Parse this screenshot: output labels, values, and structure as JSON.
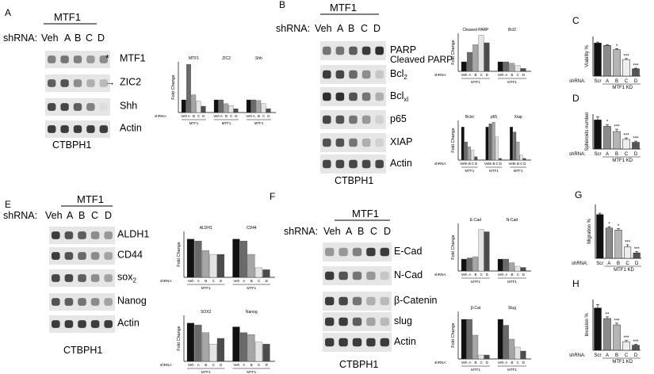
{
  "panels": {
    "A": {
      "letter": "A",
      "mtf1": "MTF1",
      "shrna": "shRNA:",
      "lanes": [
        "Veh",
        "A",
        "B",
        "C",
        "D"
      ],
      "cell_line": "CTBPH1",
      "bands": [
        {
          "label": "MTF1",
          "marker": "*",
          "intensity": [
            0.55,
            0.6,
            0.55,
            0.45,
            0.5
          ]
        },
        {
          "label": "ZIC2",
          "marker": "→",
          "intensity": [
            0.7,
            0.75,
            0.5,
            0.35,
            0.3
          ]
        },
        {
          "label": "Shh",
          "marker": "",
          "intensity": [
            0.8,
            0.8,
            0.7,
            0.55,
            0.15
          ]
        },
        {
          "label": "Actin",
          "marker": "",
          "intensity": [
            0.85,
            0.85,
            0.85,
            0.85,
            0.85
          ]
        }
      ]
    },
    "B": {
      "letter": "B",
      "mtf1": "MTF1",
      "shrna": "shRNA:",
      "lanes": [
        "Veh",
        "A",
        "B",
        "C",
        "D"
      ],
      "cell_line": "CTBPH1",
      "bands": [
        {
          "label": "PARP",
          "label2": "Cleaved PARP",
          "intensity": [
            0.6,
            0.6,
            0.7,
            0.85,
            0.9
          ]
        },
        {
          "label": "Bcl",
          "sub": "2",
          "intensity": [
            0.85,
            0.8,
            0.65,
            0.5,
            0.25
          ]
        },
        {
          "label": "Bcl",
          "sub": "xl",
          "intensity": [
            0.9,
            0.9,
            0.75,
            0.6,
            0.35
          ]
        },
        {
          "label": "p65",
          "intensity": [
            0.8,
            0.75,
            0.6,
            0.45,
            0.2
          ]
        },
        {
          "label": "XIAP",
          "intensity": [
            0.75,
            0.75,
            0.6,
            0.35,
            0.2
          ]
        },
        {
          "label": "Actin",
          "intensity": [
            0.8,
            0.8,
            0.8,
            0.8,
            0.8
          ]
        }
      ]
    },
    "C": {
      "letter": "C",
      "ylabel": "Viability %",
      "xlabel": "MTF1 KD"
    },
    "D": {
      "letter": "D",
      "ylabel": "Spheroids number",
      "xlabel": "MTF1 KD"
    },
    "E": {
      "letter": "E",
      "mtf1": "MTF1",
      "shrna": "shRNA:",
      "lanes": [
        "Veh",
        "A",
        "B",
        "C",
        "D"
      ],
      "cell_line": "CTBPH1",
      "bands": [
        {
          "label": "ALDH1",
          "intensity": [
            0.85,
            0.75,
            0.7,
            0.5,
            0.45
          ]
        },
        {
          "label": "CD44",
          "intensity": [
            0.85,
            0.75,
            0.65,
            0.5,
            0.4
          ]
        },
        {
          "label": "sox",
          "sub": "2",
          "intensity": [
            0.8,
            0.8,
            0.7,
            0.5,
            0.4
          ]
        },
        {
          "label": "Nanog",
          "intensity": [
            0.75,
            0.7,
            0.6,
            0.5,
            0.4
          ]
        },
        {
          "label": "Actin",
          "intensity": [
            0.85,
            0.85,
            0.85,
            0.85,
            0.85
          ]
        }
      ]
    },
    "F": {
      "letter": "F",
      "mtf1": "MTF1",
      "shrna": "shRNA:",
      "lanes": [
        "Veh",
        "A",
        "B",
        "C",
        "D"
      ],
      "cell_line": "CTBPH1",
      "bands": [
        {
          "label": "E-Cad",
          "intensity": [
            0.45,
            0.45,
            0.55,
            0.85,
            0.85
          ]
        },
        {
          "label": "N-Cad",
          "intensity": [
            0.85,
            0.75,
            0.6,
            0.45,
            0.25
          ]
        },
        {
          "label": "β-Catenin",
          "intensity": [
            0.85,
            0.8,
            0.6,
            0.35,
            0.3
          ]
        },
        {
          "label": "slug",
          "intensity": [
            0.85,
            0.85,
            0.7,
            0.4,
            0.3
          ]
        },
        {
          "label": "Actin",
          "intensity": [
            0.85,
            0.85,
            0.85,
            0.85,
            0.85
          ]
        }
      ]
    },
    "G": {
      "letter": "G",
      "ylabel": "Migration %",
      "xlabel": "MTF1 KD"
    },
    "H": {
      "letter": "H",
      "ylabel": "Invasion %",
      "xlabel": "MTF1 KD"
    }
  },
  "chart_data": [
    {
      "id": "A-quant",
      "type": "bar",
      "ylabel": "Fold Change",
      "ylim": [
        0,
        4
      ],
      "categories": [
        "Veh",
        "A",
        "B",
        "C",
        "D"
      ],
      "group_label": "MTF1",
      "groups": [
        {
          "name": "MTF1",
          "values": [
            1.0,
            3.8,
            1.4,
            0.9,
            0.5
          ]
        },
        {
          "name": "ZIC2",
          "values": [
            1.0,
            1.0,
            0.7,
            0.55,
            0.3
          ]
        },
        {
          "name": "Shh",
          "values": [
            1.0,
            1.0,
            0.95,
            0.7,
            0.3
          ]
        }
      ]
    },
    {
      "id": "B-quant-top",
      "type": "bar",
      "ylabel": "Fold Change",
      "ylim": [
        0,
        4
      ],
      "categories": [
        "Veh",
        "A",
        "B",
        "C",
        "D"
      ],
      "group_label": "MTF1",
      "groups": [
        {
          "name": "Cleaved PARP",
          "values": [
            1.0,
            2.0,
            2.8,
            3.8,
            3.0
          ]
        },
        {
          "name": "Bcl2",
          "values": [
            1.0,
            1.0,
            0.85,
            0.6,
            0.3
          ]
        }
      ]
    },
    {
      "id": "B-quant-bottom",
      "type": "bar",
      "ylabel": "Fold Change",
      "ylim": [
        0,
        1.2
      ],
      "categories": [
        "Veh",
        "A",
        "B",
        "C",
        "D"
      ],
      "group_label": "MTF1",
      "groups": [
        {
          "name": "Bclxl",
          "values": [
            1.0,
            0.55,
            0.4,
            0.3,
            0.1
          ]
        },
        {
          "name": "p65",
          "values": [
            1.0,
            1.1,
            1.15,
            0.7,
            0.05
          ]
        },
        {
          "name": "Xiap",
          "values": [
            1.0,
            0.85,
            0.55,
            0.15,
            0.05
          ]
        }
      ]
    },
    {
      "id": "C-viability",
      "type": "bar",
      "ylabel": "Viability %",
      "ylim": [
        0,
        120
      ],
      "categories": [
        "Scr",
        "A",
        "B",
        "C",
        "D"
      ],
      "values": [
        100,
        93,
        80,
        50,
        22
      ],
      "errors": [
        3,
        2,
        3,
        3,
        2
      ],
      "sig": [
        "",
        "",
        "*",
        "***",
        "***"
      ]
    },
    {
      "id": "D-spheroids",
      "type": "bar",
      "ylabel": "Spheroids number",
      "ylim": [
        0,
        120
      ],
      "categories": [
        "Scr",
        "A",
        "B",
        "C",
        "D"
      ],
      "values": [
        100,
        78,
        60,
        33,
        23
      ],
      "errors": [
        10,
        6,
        8,
        5,
        4
      ],
      "sig": [
        "",
        "*",
        "***",
        "***",
        "***"
      ]
    },
    {
      "id": "E-quant-top",
      "type": "bar",
      "ylabel": "Fold Change",
      "ylim": [
        0,
        1.2
      ],
      "categories": [
        "Veh",
        "A",
        "B",
        "C",
        "D"
      ],
      "group_label": "MTF1",
      "groups": [
        {
          "name": "ALDH1",
          "values": [
            1.0,
            0.95,
            0.7,
            0.6,
            0.6
          ]
        },
        {
          "name": "CD44",
          "values": [
            1.0,
            0.95,
            0.6,
            0.25,
            0.2
          ]
        }
      ]
    },
    {
      "id": "E-quant-bottom",
      "type": "bar",
      "ylabel": "Fold Change",
      "ylim": [
        0,
        1.2
      ],
      "categories": [
        "Veh",
        "A",
        "B",
        "C",
        "D"
      ],
      "group_label": "MTF1",
      "groups": [
        {
          "name": "SOX2",
          "values": [
            1.0,
            0.95,
            0.75,
            0.45,
            0.6
          ]
        },
        {
          "name": "Nanog",
          "values": [
            0.9,
            0.75,
            0.7,
            0.5,
            0.45
          ]
        }
      ]
    },
    {
      "id": "F-quant-top",
      "type": "bar",
      "ylabel": "Fold Change",
      "ylim": [
        0,
        4
      ],
      "categories": [
        "Veh",
        "A",
        "B",
        "C",
        "D"
      ],
      "group_label": "MTF1",
      "groups": [
        {
          "name": "E-Cad",
          "values": [
            1.0,
            1.1,
            1.2,
            3.5,
            3.3
          ]
        },
        {
          "name": "N-Cad",
          "values": [
            1.0,
            1.0,
            0.7,
            0.4,
            0.3
          ]
        }
      ]
    },
    {
      "id": "F-quant-bottom",
      "type": "bar",
      "ylabel": "Fold Change",
      "ylim": [
        0,
        1.2
      ],
      "categories": [
        "Veh",
        "A",
        "B",
        "C",
        "D"
      ],
      "group_label": "MTF1",
      "groups": [
        {
          "name": "β-Cat",
          "values": [
            1.0,
            1.0,
            0.6,
            0.1,
            0.1
          ]
        },
        {
          "name": "Slug",
          "values": [
            1.0,
            0.85,
            0.5,
            0.3,
            0.2
          ]
        }
      ]
    },
    {
      "id": "G-migration",
      "type": "bar",
      "ylabel": "Migration %",
      "ylim": [
        0,
        80
      ],
      "categories": [
        "Scr",
        "A",
        "B",
        "C",
        "D"
      ],
      "values": [
        65,
        45,
        42,
        17,
        8
      ],
      "errors": [
        2,
        2,
        2,
        3,
        2
      ],
      "sig": [
        "",
        "*",
        "*",
        "***",
        "***"
      ]
    },
    {
      "id": "H-invasion",
      "type": "bar",
      "ylabel": "Invasion %",
      "ylim": [
        0,
        120
      ],
      "categories": [
        "Scr",
        "A",
        "B",
        "C",
        "D"
      ],
      "values": [
        100,
        75,
        60,
        20,
        12
      ],
      "errors": [
        8,
        4,
        4,
        3,
        2
      ],
      "sig": [
        "",
        "**",
        "***",
        "***",
        "***"
      ]
    }
  ]
}
